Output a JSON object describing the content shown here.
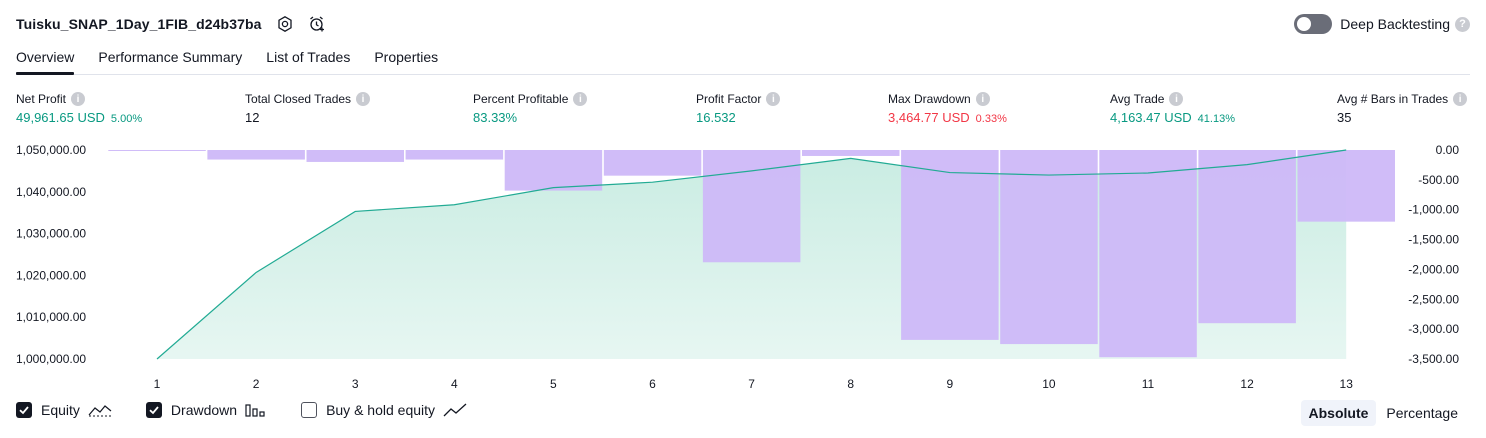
{
  "header": {
    "strategy_name": "Tuisku_SNAP_1Day_1FIB_d24b37ba",
    "deep_backtesting_label": "Deep Backtesting",
    "help_glyph": "?"
  },
  "tabs": [
    {
      "label": "Overview",
      "active": true
    },
    {
      "label": "Performance Summary",
      "active": false
    },
    {
      "label": "List of Trades",
      "active": false
    },
    {
      "label": "Properties",
      "active": false
    }
  ],
  "metrics": [
    {
      "label": "Net Profit",
      "value": "49,961.65 USD",
      "pct": "5.00%",
      "color": "green"
    },
    {
      "label": "Total Closed Trades",
      "value": "12",
      "pct": "",
      "color": "dark"
    },
    {
      "label": "Percent Profitable",
      "value": "83.33%",
      "pct": "",
      "color": "green"
    },
    {
      "label": "Profit Factor",
      "value": "16.532",
      "pct": "",
      "color": "green"
    },
    {
      "label": "Max Drawdown",
      "value": "3,464.77 USD",
      "pct": "0.33%",
      "color": "red"
    },
    {
      "label": "Avg Trade",
      "value": "4,163.47 USD",
      "pct": "41.13%",
      "color": "green"
    },
    {
      "label": "Avg # Bars in Trades",
      "value": "35",
      "pct": "",
      "color": "dark"
    }
  ],
  "colors": {
    "equity_line": "#22ab94",
    "equity_fill": "#c9ece2",
    "drawdown_bar": "#cdb8f8",
    "green": "#089981",
    "red": "#f23645"
  },
  "chart_data": {
    "type": "area",
    "x": [
      1,
      2,
      3,
      4,
      5,
      6,
      7,
      8,
      9,
      10,
      11,
      12,
      13
    ],
    "series": [
      {
        "name": "Equity",
        "values": [
          1000000,
          1020700,
          1035300,
          1036900,
          1041000,
          1042300,
          1045000,
          1048000,
          1044600,
          1044000,
          1044500,
          1046500,
          1050000
        ]
      },
      {
        "name": "Drawdown",
        "values": [
          -5,
          -160,
          -200,
          -160,
          -680,
          -430,
          -1880,
          -100,
          -3180,
          -3250,
          -3470,
          -2900,
          -1200
        ]
      }
    ],
    "left_ticks": [
      "1,050,000.00",
      "1,040,000.00",
      "1,030,000.00",
      "1,020,000.00",
      "1,010,000.00",
      "1,000,000.00"
    ],
    "right_ticks": [
      "0.00",
      "-500.00",
      "-1,000.00",
      "-1,500.00",
      "-2,000.00",
      "-2,500.00",
      "-3,000.00",
      "-3,500.00"
    ],
    "left_ylim": [
      1000000,
      1050000
    ],
    "right_ylim": [
      -3500,
      0
    ],
    "grid": false
  },
  "legend": [
    {
      "label": "Equity",
      "checked": true,
      "icon": "equity-line-icon"
    },
    {
      "label": "Drawdown",
      "checked": true,
      "icon": "drawdown-bars-icon"
    },
    {
      "label": "Buy & hold equity",
      "checked": false,
      "icon": "buy-hold-line-icon"
    }
  ],
  "modes": [
    {
      "label": "Absolute",
      "active": true
    },
    {
      "label": "Percentage",
      "active": false
    }
  ]
}
